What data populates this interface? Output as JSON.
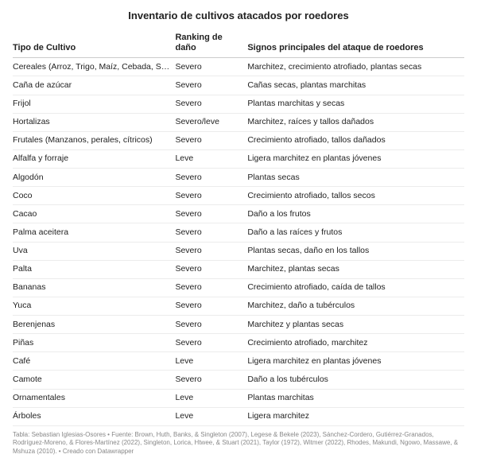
{
  "title": "Inventario de cultivos atacados por roedores",
  "columns": [
    {
      "label": "Tipo de Cultivo",
      "width": "36%"
    },
    {
      "label": "Ranking de daño",
      "width": "16%"
    },
    {
      "label": "Signos principales del ataque de roedores",
      "width": "48%"
    }
  ],
  "rows": [
    [
      "Cereales (Arroz, Trigo, Maíz, Cebada, Sorgo)",
      "Severo",
      "Marchitez, crecimiento atrofiado, plantas secas"
    ],
    [
      "Caña de azúcar",
      "Severo",
      "Cañas secas, plantas marchitas"
    ],
    [
      "Frijol",
      "Severo",
      "Plantas marchitas y secas"
    ],
    [
      "Hortalizas",
      "Severo/leve",
      "Marchitez, raíces y tallos dañados"
    ],
    [
      "Frutales (Manzanos, perales, cítricos)",
      "Severo",
      "Crecimiento atrofiado, tallos dañados"
    ],
    [
      "Alfalfa y forraje",
      "Leve",
      "Ligera marchitez en plantas jóvenes"
    ],
    [
      "Algodón",
      "Severo",
      "Plantas secas"
    ],
    [
      "Coco",
      "Severo",
      "Crecimiento atrofiado, tallos secos"
    ],
    [
      "Cacao",
      "Severo",
      "Daño a los frutos"
    ],
    [
      "Palma aceitera",
      "Severo",
      "Daño a las raíces y frutos"
    ],
    [
      "Uva",
      "Severo",
      "Plantas secas, daño en los tallos"
    ],
    [
      "Palta",
      "Severo",
      "Marchitez, plantas secas"
    ],
    [
      "Bananas",
      "Severo",
      "Crecimiento atrofiado, caída de tallos"
    ],
    [
      "Yuca",
      "Severo",
      "Marchitez, daño a tubérculos"
    ],
    [
      "Berenjenas",
      "Severo",
      "Marchitez y plantas secas"
    ],
    [
      "Piñas",
      "Severo",
      "Crecimiento atrofiado, marchitez"
    ],
    [
      "Café",
      "Leve",
      "Ligera marchitez en plantas jóvenes"
    ],
    [
      "Camote",
      "Severo",
      "Daño a los tubérculos"
    ],
    [
      "Ornamentales",
      "Leve",
      "Plantas marchitas"
    ],
    [
      "Árboles",
      "Leve",
      "Ligera marchitez"
    ]
  ],
  "footer": "Tabla: Sebastian Iglesias-Osores • Fuente: Brown, Huth, Banks, & Singleton (2007), Legese & Bekele (2023), Sánchez-Cordero, Gutiérrez-Granados, Rodríguez-Moreno, & Flores-Martínez (2022), Singleton, Lorica, Htwee, & Stuart (2021), Taylor (1972), Witmer (2022), Rhodes, Makundi, Ngowo, Massawe, & Mshuza (2010). • Creado con Datawrapper",
  "styles": {
    "body_bg": "#ffffff",
    "text_color": "#222222",
    "header_border": "#cccccc",
    "row_border": "#ececec",
    "footer_color": "#888888",
    "title_fontsize": 13,
    "th_fontsize": 11,
    "td_fontsize": 10.5,
    "footer_fontsize": 8
  }
}
